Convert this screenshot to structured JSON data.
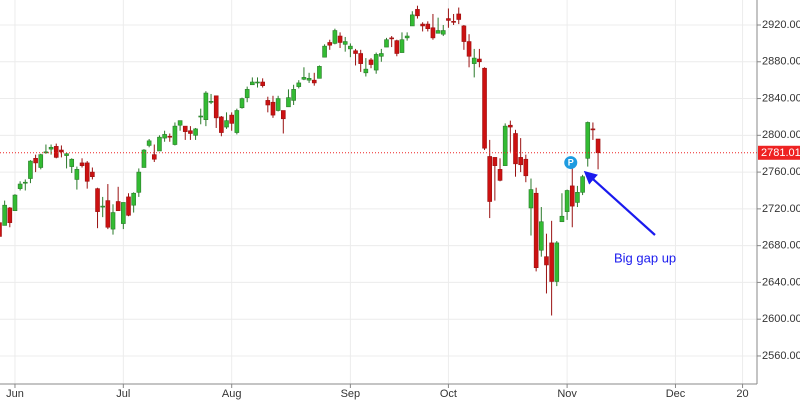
{
  "chart_data": {
    "type": "candlestick",
    "x": [
      -2,
      -1,
      0,
      1,
      2,
      3,
      4,
      5,
      6,
      7,
      8,
      9,
      10,
      11,
      12,
      13,
      14,
      15,
      16,
      17,
      18,
      19,
      20,
      21,
      22,
      23,
      24,
      25,
      26,
      27,
      28,
      29,
      30,
      31,
      32,
      33,
      34,
      35,
      36,
      37,
      38,
      39,
      40,
      41,
      42,
      43,
      44,
      45,
      46,
      47,
      48,
      49,
      50,
      51,
      52,
      53,
      54,
      55,
      56,
      57,
      58,
      59,
      60,
      61,
      62,
      63,
      64,
      65,
      66,
      67,
      68,
      69,
      70,
      71,
      72,
      73,
      74,
      75,
      76,
      77,
      78,
      79,
      80,
      81,
      82,
      83,
      84,
      85,
      86,
      87,
      88,
      89,
      90,
      91,
      92,
      93,
      94,
      95,
      96,
      97,
      98,
      99,
      100,
      101,
      102,
      103,
      104,
      105,
      106,
      107,
      108,
      109,
      110,
      111,
      112,
      113,
      114
    ],
    "open": [
      2705,
      2702,
      2721,
      2718,
      2742,
      2748,
      2753,
      2775,
      2765,
      2781,
      2785,
      2788,
      2784,
      2778,
      2766,
      2752,
      2770,
      2770,
      2760,
      2742,
      2723,
      2729,
      2698,
      2728,
      2704,
      2733,
      2724,
      2738,
      2765,
      2789,
      2779,
      2783,
      2797,
      2799,
      2790,
      2811,
      2810,
      2805,
      2800,
      2820,
      2817,
      2836,
      2843,
      2820,
      2809,
      2822,
      2803,
      2830,
      2841,
      2855,
      2857,
      2858,
      2838,
      2836,
      2827,
      2827,
      2831,
      2838,
      2853,
      2861,
      2860,
      2860,
      2862,
      2885,
      2901,
      2900,
      2908,
      2899,
      2894,
      2892,
      2889,
      2868,
      2882,
      2871,
      2886,
      2896,
      2906,
      2903,
      2890,
      2906,
      2919,
      2937,
      2921,
      2921,
      2917,
      2911,
      2910,
      2927,
      2924,
      2932,
      2919,
      2902,
      2878,
      2883,
      2873,
      2777,
      2776,
      2763,
      2767,
      2811,
      2802,
      2776,
      2774,
      2721,
      2737,
      2675,
      2668,
      2683,
      2641,
      2706,
      2717,
      2745,
      2727,
      2738,
      2775,
      2807,
      2796
    ],
    "high": [
      2710,
      2729,
      2722,
      2736,
      2750,
      2752,
      2773,
      2779,
      2780,
      2790,
      2790,
      2791,
      2789,
      2781,
      2775,
      2766,
      2775,
      2772,
      2765,
      2743,
      2733,
      2747,
      2725,
      2744,
      2727,
      2737,
      2738,
      2764,
      2785,
      2796,
      2790,
      2800,
      2805,
      2802,
      2814,
      2816,
      2810,
      2810,
      2808,
      2829,
      2848,
      2845,
      2843,
      2821,
      2825,
      2825,
      2829,
      2841,
      2853,
      2863,
      2863,
      2862,
      2842,
      2843,
      2843,
      2827,
      2850,
      2855,
      2860,
      2874,
      2868,
      2868,
      2876,
      2899,
      2904,
      2916,
      2912,
      2907,
      2900,
      2894,
      2893,
      2884,
      2884,
      2890,
      2894,
      2906,
      2908,
      2904,
      2912,
      2912,
      2935,
      2941,
      2923,
      2924,
      2932,
      2928,
      2920,
      2938,
      2932,
      2939,
      2920,
      2910,
      2894,
      2894,
      2874,
      2795,
      2776,
      2775,
      2813,
      2816,
      2806,
      2797,
      2779,
      2753,
      2743,
      2722,
      2693,
      2707,
      2685,
      2737,
      2741,
      2767,
      2745,
      2757,
      2815,
      2814,
      2796
    ],
    "low": [
      2676,
      2702,
      2700,
      2718,
      2740,
      2740,
      2748,
      2760,
      2763,
      2780,
      2779,
      2775,
      2776,
      2764,
      2759,
      2741,
      2765,
      2742,
      2752,
      2699,
      2711,
      2698,
      2692,
      2718,
      2698,
      2712,
      2716,
      2733,
      2765,
      2787,
      2771,
      2783,
      2793,
      2793,
      2789,
      2805,
      2795,
      2795,
      2795,
      2812,
      2810,
      2834,
      2808,
      2799,
      2807,
      2805,
      2801,
      2829,
      2836,
      2855,
      2852,
      2852,
      2825,
      2819,
      2826,
      2802,
      2831,
      2833,
      2851,
      2860,
      2857,
      2854,
      2862,
      2885,
      2893,
      2899,
      2895,
      2891,
      2885,
      2876,
      2869,
      2864,
      2873,
      2867,
      2880,
      2896,
      2896,
      2886,
      2890,
      2903,
      2919,
      2927,
      2913,
      2913,
      2904,
      2911,
      2908,
      2917,
      2920,
      2921,
      2893,
      2874,
      2863,
      2874,
      2784,
      2710,
      2729,
      2750,
      2767,
      2782,
      2755,
      2760,
      2749,
      2691,
      2652,
      2668,
      2628,
      2604,
      2636,
      2706,
      2708,
      2700,
      2722,
      2735,
      2766,
      2795,
      2763
    ],
    "close": [
      2690,
      2724,
      2705,
      2735,
      2747,
      2749,
      2772,
      2770,
      2779,
      2782,
      2787,
      2776,
      2782,
      2780,
      2774,
      2763,
      2767,
      2750,
      2755,
      2717,
      2723,
      2700,
      2716,
      2718,
      2727,
      2713,
      2737,
      2760,
      2784,
      2794,
      2774,
      2798,
      2801,
      2798,
      2810,
      2816,
      2804,
      2802,
      2807,
      2821,
      2846,
      2837,
      2819,
      2803,
      2816,
      2813,
      2827,
      2840,
      2850,
      2858,
      2858,
      2854,
      2833,
      2822,
      2840,
      2818,
      2841,
      2850,
      2857,
      2863,
      2862,
      2857,
      2875,
      2897,
      2898,
      2914,
      2901,
      2902,
      2897,
      2889,
      2878,
      2872,
      2877,
      2888,
      2889,
      2904,
      2905,
      2889,
      2904,
      2908,
      2931,
      2930,
      2919,
      2916,
      2906,
      2914,
      2914,
      2925,
      2923,
      2926,
      2902,
      2886,
      2884,
      2880,
      2786,
      2728,
      2767,
      2751,
      2810,
      2809,
      2769,
      2768,
      2756,
      2741,
      2656,
      2706,
      2659,
      2641,
      2683,
      2712,
      2740,
      2723,
      2738,
      2755,
      2814,
      2806,
      2781.01
    ],
    "up_color": "#33bb33",
    "down_color": "#cc1111",
    "xlim": [
      -1.9,
      144.8
    ],
    "xticks": [
      {
        "value": 1,
        "label": "Jun"
      },
      {
        "value": 22,
        "label": "Jul"
      },
      {
        "value": 43,
        "label": "Aug"
      },
      {
        "value": 66,
        "label": "Sep"
      },
      {
        "value": 85,
        "label": "Oct"
      },
      {
        "value": 108,
        "label": "Nov"
      },
      {
        "value": 129,
        "label": "Dec"
      },
      {
        "value": 142,
        "label": "20"
      }
    ],
    "ylim": [
      2529.5,
      2947.2
    ],
    "yticks": [
      {
        "value": 2560,
        "label": "2560.00"
      },
      {
        "value": 2600,
        "label": "2600.00"
      },
      {
        "value": 2640,
        "label": "2640.00"
      },
      {
        "value": 2680,
        "label": "2680.00"
      },
      {
        "value": 2720,
        "label": "2720.00"
      },
      {
        "value": 2760,
        "label": "2760.00"
      },
      {
        "value": 2800,
        "label": "2800.00"
      },
      {
        "value": 2840,
        "label": "2840.00"
      },
      {
        "value": 2880,
        "label": "2880.00"
      },
      {
        "value": 2920,
        "label": "2920.00"
      }
    ],
    "grid": true,
    "price_line": {
      "value": 2781.01,
      "color": "#ee2222"
    },
    "marker": {
      "label": "P",
      "color": "#1e9be0"
    },
    "annotation": {
      "text": "Big gap up",
      "color": "#1a1aee"
    }
  }
}
